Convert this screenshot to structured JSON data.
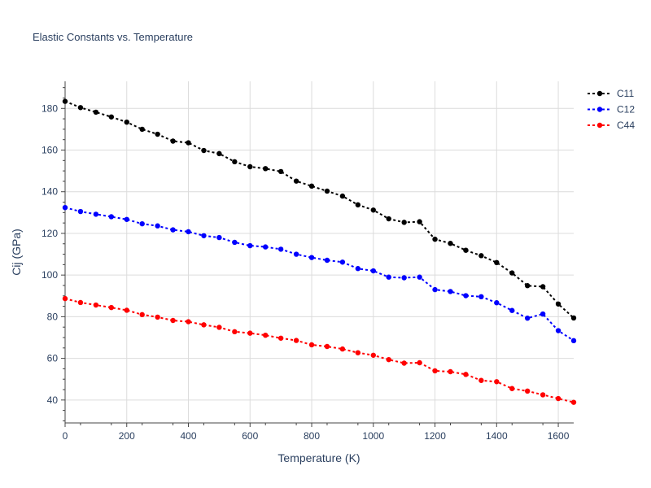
{
  "chart_data": {
    "type": "line",
    "title": "Elastic Constants vs. Temperature",
    "xlabel": "Temperature (K)",
    "ylabel": "Cij (GPa)",
    "xlim": [
      0,
      1650
    ],
    "ylim": [
      29,
      193
    ],
    "x_ticks": [
      0,
      200,
      400,
      600,
      800,
      1000,
      1200,
      1400,
      1600
    ],
    "y_ticks": [
      40,
      60,
      80,
      100,
      120,
      140,
      160,
      180
    ],
    "grid": true,
    "legend_position": "top-right",
    "x": [
      0,
      50,
      100,
      150,
      200,
      250,
      300,
      350,
      400,
      450,
      500,
      550,
      600,
      650,
      700,
      750,
      800,
      850,
      900,
      950,
      1000,
      1050,
      1100,
      1150,
      1200,
      1250,
      1300,
      1350,
      1400,
      1450,
      1500,
      1550,
      1600,
      1650
    ],
    "series": [
      {
        "name": "C11",
        "color": "#000000",
        "values": [
          183.4,
          180.4,
          178.2,
          175.9,
          173.4,
          170.0,
          167.6,
          164.3,
          163.5,
          159.8,
          158.3,
          154.4,
          152.0,
          151.1,
          149.7,
          145.1,
          142.7,
          140.3,
          137.9,
          133.7,
          131.2,
          127.0,
          125.3,
          125.6,
          117.2,
          115.2,
          111.9,
          109.3,
          106.0,
          101.0,
          94.9,
          94.4,
          86.1,
          79.4
        ]
      },
      {
        "name": "C12",
        "color": "#0000ff",
        "values": [
          132.4,
          130.5,
          129.2,
          128.0,
          126.7,
          124.6,
          123.6,
          121.7,
          120.8,
          118.9,
          118.0,
          115.7,
          114.1,
          113.5,
          112.4,
          110.0,
          108.4,
          107.1,
          106.2,
          103.1,
          102.0,
          99.0,
          98.7,
          99.0,
          93.0,
          92.1,
          90.1,
          89.6,
          86.7,
          83.0,
          79.3,
          81.3,
          73.3,
          68.5
        ]
      },
      {
        "name": "C44",
        "color": "#ff0000",
        "values": [
          88.7,
          86.8,
          85.6,
          84.4,
          83.1,
          81.0,
          79.8,
          78.2,
          77.6,
          76.1,
          74.9,
          72.8,
          72.1,
          71.1,
          69.7,
          68.6,
          66.5,
          65.7,
          64.5,
          62.7,
          61.5,
          59.4,
          57.7,
          57.9,
          54.0,
          53.6,
          52.3,
          49.4,
          48.8,
          45.5,
          44.3,
          42.5,
          40.7,
          38.9
        ]
      }
    ]
  }
}
